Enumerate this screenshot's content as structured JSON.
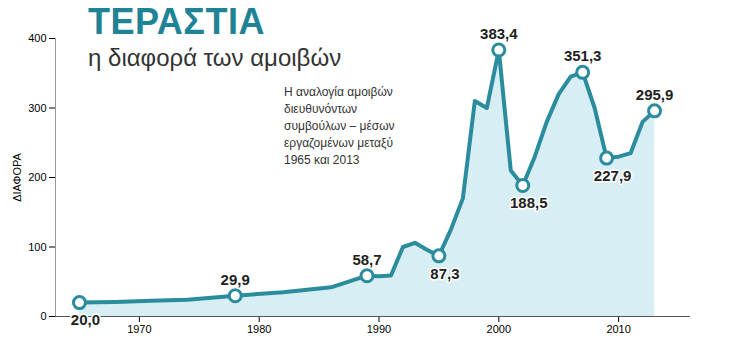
{
  "chart_data": {
    "type": "line",
    "title": "ΤΕΡΑΣΤΙΑ",
    "subtitle": "η διαφορά των αμοιβών",
    "description": "Η αναλογία αμοιβών διευθυνόντων συμβούλων – μέσων εργαζομένων μεταξύ 1965 και 2013",
    "y_label": "ΔΙΑΦΟΡΑ",
    "x": [
      1965,
      1968,
      1971,
      1974,
      1978,
      1982,
      1986,
      1989,
      1990,
      1991,
      1992,
      1993,
      1994,
      1995,
      1996,
      1997,
      1998,
      1999,
      2000,
      2001,
      2002,
      2003,
      2004,
      2005,
      2006,
      2007,
      2008,
      2009,
      2010,
      2011,
      2012,
      2013
    ],
    "values": [
      20.0,
      21,
      22.5,
      24,
      29.9,
      35,
      42,
      58.7,
      58,
      59,
      100,
      106,
      96,
      87.3,
      125,
      170,
      310,
      300,
      383.4,
      210,
      188.5,
      230,
      280,
      320,
      345,
      351.3,
      300,
      227.9,
      230,
      235,
      280,
      295.9
    ],
    "value_labels": [
      "20,0",
      null,
      null,
      null,
      "29,9",
      null,
      null,
      "58,7",
      null,
      null,
      null,
      null,
      null,
      "87,3",
      null,
      null,
      null,
      null,
      "383,4",
      null,
      "188,5",
      null,
      null,
      null,
      null,
      "351,3",
      null,
      "227,9",
      null,
      null,
      null,
      "295,9"
    ],
    "color": "#2b8c9e",
    "xlim": [
      1963,
      2016
    ],
    "ylim": [
      0,
      400
    ],
    "xticks": [
      1970,
      1980,
      1990,
      2000,
      2010
    ],
    "yticks": [
      0,
      100,
      200,
      300,
      400
    ],
    "grid": false,
    "data_labels": true,
    "marker": "circle"
  }
}
